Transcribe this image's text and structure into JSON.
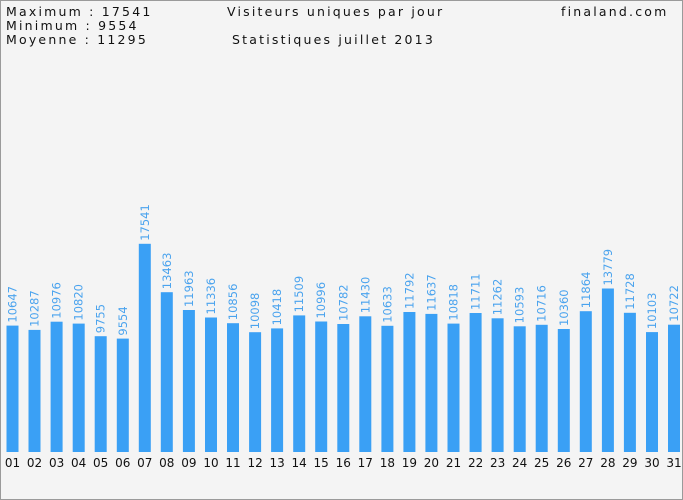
{
  "header": {
    "max_label": "Maximum : 17541",
    "min_label": "Minimum : 9554",
    "avg_label": "Moyenne : 11295",
    "title": "Visiteurs uniques par jour",
    "subtitle": "Statistiques juillet 2013",
    "site": "finaland.com"
  },
  "colors": {
    "bar": "#3aa0f5",
    "value_text": "#4aa3ee",
    "background": "#f4f4f4"
  },
  "chart_data": {
    "type": "bar",
    "title": "Visiteurs uniques par jour",
    "subtitle": "Statistiques juillet 2013",
    "categories": [
      "01",
      "02",
      "03",
      "04",
      "05",
      "06",
      "07",
      "08",
      "09",
      "10",
      "11",
      "12",
      "13",
      "14",
      "15",
      "16",
      "17",
      "18",
      "19",
      "20",
      "21",
      "22",
      "23",
      "24",
      "25",
      "26",
      "27",
      "28",
      "29",
      "30",
      "31"
    ],
    "values": [
      10647,
      10287,
      10976,
      10820,
      9755,
      9554,
      17541,
      13463,
      11963,
      11336,
      10856,
      10098,
      10418,
      11509,
      10996,
      10782,
      11430,
      10633,
      11792,
      11637,
      10818,
      11711,
      11262,
      10593,
      10716,
      10360,
      11864,
      13779,
      11728,
      10103,
      10722
    ],
    "data_labels": [
      "10647",
      "10287",
      "10976",
      "10820",
      "9755",
      "9554",
      "17541",
      "13463",
      "11963",
      "11336",
      "10856",
      "10098",
      "10418",
      "11509",
      "10996",
      "10782",
      "11430",
      "10633",
      "11792",
      "11637",
      "10818",
      "11711",
      "11262",
      "10593",
      "10716",
      "10360",
      "11864",
      "13779",
      "11728",
      "10103",
      "10722"
    ],
    "ylim": [
      0,
      38000
    ],
    "grid": false,
    "legend": "none"
  }
}
